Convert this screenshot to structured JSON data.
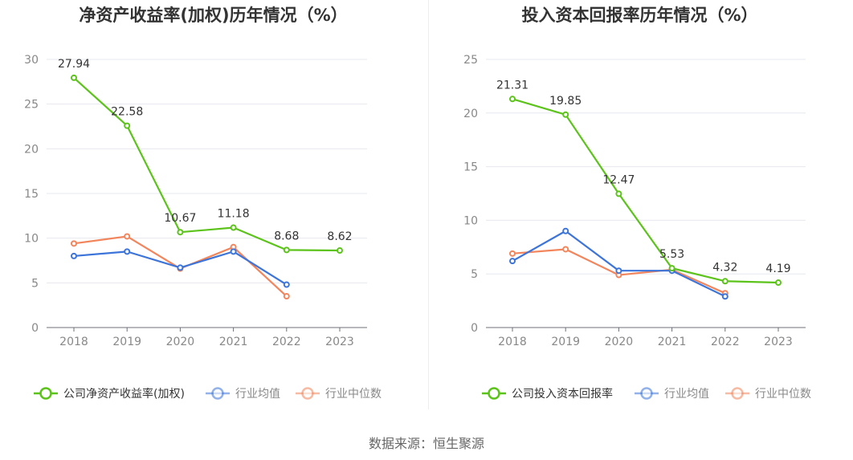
{
  "source": "数据来源：恒生聚源",
  "colors": {
    "company": "#5cc31b",
    "avg": "#3c74d9",
    "median": "#f2855b"
  },
  "chart_data": [
    {
      "type": "line",
      "title": "净资产收益率(加权)历年情况（%）",
      "categories": [
        "2018",
        "2019",
        "2020",
        "2021",
        "2022",
        "2023"
      ],
      "ylim": [
        0,
        30
      ],
      "yticks": [
        0,
        5,
        10,
        15,
        20,
        25,
        30
      ],
      "grid": true,
      "legend_position": "bottom",
      "series": [
        {
          "name": "公司净资产收益率(加权)",
          "key": "company",
          "values": [
            27.94,
            22.58,
            10.67,
            11.18,
            8.68,
            8.62
          ],
          "labeled": true
        },
        {
          "name": "行业均值",
          "key": "avg",
          "values": [
            8.0,
            8.5,
            6.7,
            8.5,
            4.8,
            null
          ],
          "labeled": false
        },
        {
          "name": "行业中位数",
          "key": "median",
          "values": [
            9.4,
            10.2,
            6.6,
            9.0,
            3.5,
            null
          ],
          "labeled": false
        }
      ]
    },
    {
      "type": "line",
      "title": "投入资本回报率历年情况（%）",
      "categories": [
        "2018",
        "2019",
        "2020",
        "2021",
        "2022",
        "2023"
      ],
      "ylim": [
        0,
        25
      ],
      "yticks": [
        0,
        5,
        10,
        15,
        20,
        25
      ],
      "grid": true,
      "legend_position": "bottom",
      "series": [
        {
          "name": "公司投入资本回报率",
          "key": "company",
          "values": [
            21.31,
            19.85,
            12.47,
            5.53,
            4.32,
            4.19
          ],
          "labeled": true
        },
        {
          "name": "行业均值",
          "key": "avg",
          "values": [
            6.2,
            9.0,
            5.3,
            5.3,
            2.9,
            null
          ],
          "labeled": false
        },
        {
          "name": "行业中位数",
          "key": "median",
          "values": [
            6.9,
            7.3,
            4.9,
            5.4,
            3.2,
            null
          ],
          "labeled": false
        }
      ]
    }
  ]
}
